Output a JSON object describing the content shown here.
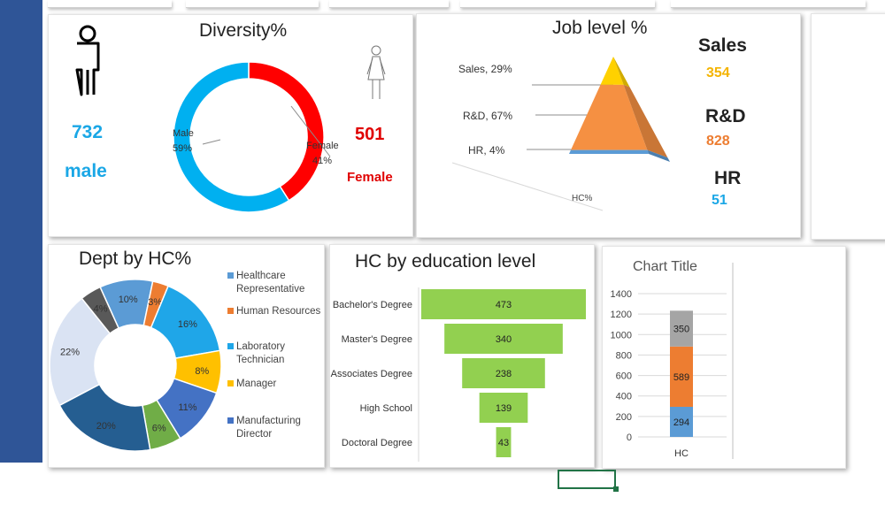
{
  "diversity": {
    "title": "Diversity%",
    "male_count": "732",
    "male_word": "male",
    "female_count": "501",
    "female_word": "Female",
    "male_label": "Male",
    "male_pct": "59%",
    "female_label": "Female",
    "female_pct": "41%",
    "icons": [
      "male-person-icon",
      "female-person-icon"
    ],
    "colors": {
      "male": "#00b0f0",
      "female": "#ff0000"
    }
  },
  "job_level": {
    "title": "Job level %",
    "axis_label": "HC%",
    "slice_labels": [
      "Sales, 29%",
      "R&D, 67%",
      "HR, 4%"
    ],
    "stats": [
      {
        "name": "Sales",
        "value": "354",
        "color": "#f4b400"
      },
      {
        "name": "R&D",
        "value": "828",
        "color": "#ed7d31"
      },
      {
        "name": "HR",
        "value": "51",
        "color": "#00b0f0"
      }
    ]
  },
  "dept": {
    "title": "Dept by HC%",
    "legend": [
      {
        "text": "Healthcare Representative",
        "color": "#5b9bd5"
      },
      {
        "text": "Human Resources",
        "color": "#ed7d31"
      },
      {
        "text": "Laboratory Technician",
        "color": "#1fa6e8"
      },
      {
        "text": "Manager",
        "color": "#ffc000"
      },
      {
        "text": "Manufacturing Director",
        "color": "#4472c4"
      }
    ]
  },
  "education": {
    "title": "HC by education level"
  },
  "stacked": {
    "title": "Chart Title"
  },
  "chart_data": [
    {
      "type": "pie",
      "title": "Diversity%",
      "categories": [
        "Male",
        "Female"
      ],
      "values": [
        59,
        41
      ],
      "unit": "%",
      "colors": [
        "#00b0f0",
        "#ff0000"
      ]
    },
    {
      "type": "pie",
      "title": "Job level %",
      "categories": [
        "Sales",
        "R&D",
        "HR"
      ],
      "values": [
        29,
        67,
        4
      ],
      "unit": "%",
      "colors": [
        "#ffd100",
        "#f59042",
        "#5b9bd5"
      ]
    },
    {
      "type": "pie",
      "title": "Dept by HC%",
      "values": [
        10,
        3,
        16,
        8,
        11,
        6,
        20,
        22,
        4
      ],
      "labels": [
        "10%",
        "3%",
        "16%",
        "8%",
        "11%",
        "6%",
        "20%",
        "22%",
        "4%"
      ],
      "colors": [
        "#5b9bd5",
        "#ed7d31",
        "#1fa6e8",
        "#ffc000",
        "#4472c4",
        "#70ad47",
        "#255e91",
        "#dae3f3",
        "#595959"
      ]
    },
    {
      "type": "bar",
      "title": "HC by education level",
      "categories": [
        "Bachelor's Degree",
        "Master's Degree",
        "Associates Degree",
        "High School",
        "Doctoral Degree"
      ],
      "values": [
        473,
        340,
        238,
        139,
        43
      ],
      "color": "#92d050"
    },
    {
      "type": "bar",
      "title": "Chart Title",
      "categories": [
        "HC"
      ],
      "series": [
        {
          "values": [
            294
          ],
          "color": "#5b9bd5"
        },
        {
          "values": [
            589
          ],
          "color": "#ed7d31"
        },
        {
          "values": [
            350
          ],
          "color": "#a5a5a5"
        }
      ],
      "yticks": [
        "0",
        "200",
        "400",
        "600",
        "800",
        "1000",
        "1200",
        "1400"
      ],
      "ylim": [
        0,
        1400
      ],
      "grid": true
    }
  ]
}
